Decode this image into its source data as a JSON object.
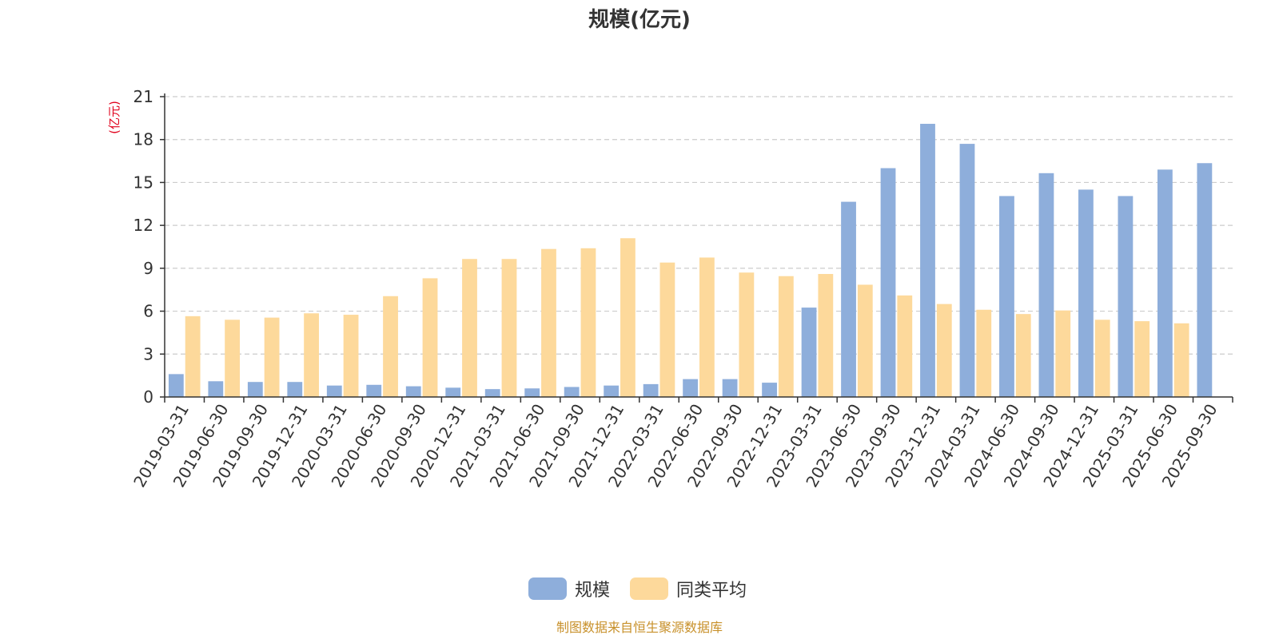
{
  "chart_data": {
    "type": "bar",
    "title": "规模(亿元)",
    "ylabel": "(亿元)",
    "ylim": [
      0,
      21
    ],
    "yticks": [
      0,
      3,
      6,
      9,
      12,
      15,
      18,
      21
    ],
    "grid": true,
    "legend_position": "bottom-center",
    "categories": [
      "2019-03-31",
      "2019-06-30",
      "2019-09-30",
      "2019-12-31",
      "2020-03-31",
      "2020-06-30",
      "2020-09-30",
      "2020-12-31",
      "2021-03-31",
      "2021-06-30",
      "2021-09-30",
      "2021-12-31",
      "2022-03-31",
      "2022-06-30",
      "2022-09-30",
      "2022-12-31",
      "2023-03-31",
      "2023-06-30",
      "2023-09-30",
      "2023-12-31",
      "2024-03-31",
      "2024-06-30",
      "2024-09-30",
      "2024-12-31",
      "2025-03-31",
      "2025-06-30",
      "2025-09-30"
    ],
    "series": [
      {
        "name": "规模",
        "color": "#8eaedb",
        "values": [
          1.6,
          1.1,
          1.05,
          1.05,
          0.8,
          0.85,
          0.75,
          0.65,
          0.55,
          0.6,
          0.7,
          0.8,
          0.9,
          1.25,
          1.25,
          1.0,
          6.25,
          13.65,
          16.0,
          19.1,
          17.7,
          14.05,
          15.65,
          14.5,
          14.05,
          15.9,
          16.35
        ]
      },
      {
        "name": "同类平均",
        "color": "#fdd99b",
        "values": [
          5.65,
          5.4,
          5.55,
          5.85,
          5.75,
          7.05,
          8.3,
          9.65,
          9.65,
          10.35,
          10.4,
          11.1,
          9.4,
          9.75,
          8.7,
          8.45,
          8.6,
          7.85,
          7.1,
          6.5,
          6.1,
          5.8,
          6.05,
          5.4,
          5.3,
          5.15,
          null
        ]
      }
    ],
    "source": "制图数据来自恒生聚源数据库",
    "unit_color": "#e0001b",
    "source_color": "#c8912b"
  }
}
